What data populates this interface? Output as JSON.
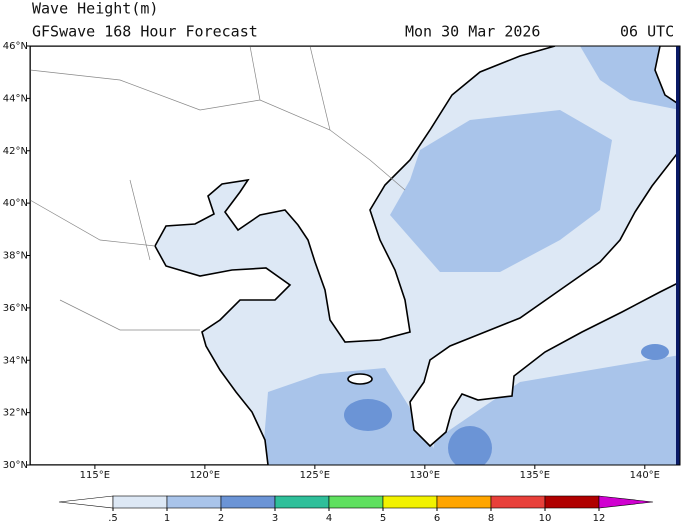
{
  "header": {
    "title": "Wave Height(m)",
    "subtitle": "GFSwave 168 Hour Forecast",
    "date": "Mon 30 Mar 2026",
    "time": "06 UTC"
  },
  "map": {
    "xlim": [
      112.05,
      141.6
    ],
    "ylim": [
      30,
      46
    ],
    "xticks": [
      {
        "value": 115,
        "label": "115°E"
      },
      {
        "value": 120,
        "label": "120°E"
      },
      {
        "value": 125,
        "label": "125°E"
      },
      {
        "value": 130,
        "label": "130°E"
      },
      {
        "value": 135,
        "label": "135°E"
      },
      {
        "value": 140,
        "label": "140°E"
      }
    ],
    "yticks": [
      {
        "value": 30,
        "label": "30°N"
      },
      {
        "value": 32,
        "label": "32°N"
      },
      {
        "value": 34,
        "label": "34°N"
      },
      {
        "value": 36,
        "label": "36°N"
      },
      {
        "value": 38,
        "label": "38°N"
      },
      {
        "value": 40,
        "label": "40°N"
      },
      {
        "value": 42,
        "label": "42°N"
      },
      {
        "value": 44,
        "label": "44°N"
      },
      {
        "value": 46,
        "label": "46°N"
      }
    ]
  },
  "colorbar": {
    "levels": [
      {
        "value": 0.5,
        "label": ".5"
      },
      1,
      2,
      3,
      4,
      5,
      6,
      8,
      10,
      12
    ],
    "colors": [
      "#ffffff",
      "#dde8f5",
      "#a9c4ea",
      "#6b94d6",
      "#2fbf9a",
      "#5fe05f",
      "#f2f200",
      "#ffa500",
      "#e8403a",
      "#b00000",
      "#d000d0"
    ]
  }
}
